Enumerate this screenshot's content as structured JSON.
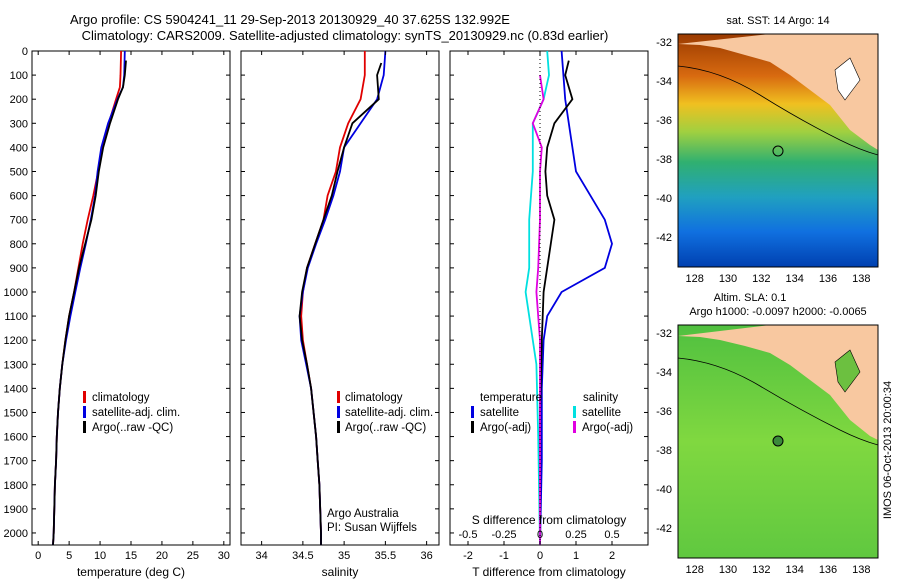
{
  "header": {
    "title1": "Argo profile: CS 5904241_11 29-Sep-2013 20130929_40 37.625S 132.992E",
    "title2": "Climatology: CARS2009. Satellite-adjusted climatology: synTS_20130929.nc (0.83d earlier)"
  },
  "colors": {
    "climatology": "#e00000",
    "satellite": "#0000e0",
    "argo": "#000000",
    "s_satellite": "#00e0e0",
    "s_argo": "#e000e0"
  },
  "chart_data": [
    {
      "type": "line",
      "name": "temperature-panel",
      "xlabel": "temperature (deg C)",
      "ylabel": "",
      "xlim": [
        -1,
        31
      ],
      "ylim": [
        2050,
        0
      ],
      "xticks": [
        0,
        5,
        10,
        15,
        20,
        25,
        30
      ],
      "yticks": [
        0,
        100,
        200,
        300,
        400,
        500,
        600,
        700,
        800,
        900,
        1000,
        1100,
        1200,
        1300,
        1400,
        1500,
        1600,
        1700,
        1800,
        1900,
        2000
      ],
      "legend": [
        "climatology",
        "satellite-adj. clim.",
        "Argo(..raw -QC)"
      ],
      "series": [
        {
          "name": "climatology",
          "color": "#e00000",
          "points": [
            [
              13.4,
              0
            ],
            [
              13.3,
              100
            ],
            [
              13.2,
              150
            ],
            [
              12.6,
              200
            ],
            [
              11.4,
              300
            ],
            [
              10.4,
              400
            ],
            [
              9.7,
              500
            ],
            [
              8.9,
              600
            ],
            [
              8.0,
              700
            ],
            [
              7.2,
              800
            ],
            [
              6.5,
              900
            ],
            [
              5.8,
              1000
            ],
            [
              5.0,
              1100
            ],
            [
              4.4,
              1200
            ],
            [
              3.9,
              1300
            ],
            [
              3.5,
              1400
            ],
            [
              3.2,
              1500
            ],
            [
              3.0,
              1600
            ],
            [
              2.9,
              1700
            ],
            [
              2.7,
              1800
            ],
            [
              2.6,
              1900
            ],
            [
              2.5,
              2000
            ],
            [
              2.4,
              2050
            ]
          ]
        },
        {
          "name": "satellite-adj. clim.",
          "color": "#0000e0",
          "points": [
            [
              14.0,
              0
            ],
            [
              13.9,
              100
            ],
            [
              13.7,
              150
            ],
            [
              12.8,
              200
            ],
            [
              11.3,
              300
            ],
            [
              10.2,
              400
            ],
            [
              9.6,
              500
            ],
            [
              9.2,
              600
            ],
            [
              8.5,
              700
            ],
            [
              7.7,
              800
            ],
            [
              6.8,
              900
            ],
            [
              6.0,
              1000
            ],
            [
              5.2,
              1100
            ],
            [
              4.5,
              1200
            ],
            [
              3.9,
              1300
            ],
            [
              3.5,
              1400
            ],
            [
              3.2,
              1500
            ],
            [
              3.0,
              1600
            ],
            [
              2.9,
              1700
            ],
            [
              2.7,
              1800
            ],
            [
              2.6,
              1900
            ],
            [
              2.5,
              2000
            ],
            [
              2.4,
              2050
            ]
          ]
        },
        {
          "name": "Argo(..raw -QC)",
          "color": "#000000",
          "points": [
            [
              14.2,
              40
            ],
            [
              14.0,
              100
            ],
            [
              13.7,
              150
            ],
            [
              12.9,
              200
            ],
            [
              11.6,
              300
            ],
            [
              10.5,
              400
            ],
            [
              9.8,
              500
            ],
            [
              9.3,
              600
            ],
            [
              8.6,
              700
            ],
            [
              7.6,
              800
            ],
            [
              6.6,
              900
            ],
            [
              5.8,
              1000
            ],
            [
              5.0,
              1100
            ],
            [
              4.4,
              1200
            ],
            [
              3.9,
              1300
            ],
            [
              3.5,
              1400
            ],
            [
              3.2,
              1500
            ],
            [
              3.0,
              1600
            ],
            [
              2.9,
              1700
            ],
            [
              2.7,
              1800
            ],
            [
              2.6,
              1900
            ],
            [
              2.5,
              2000
            ],
            [
              2.4,
              2050
            ]
          ]
        }
      ]
    },
    {
      "type": "line",
      "name": "salinity-panel",
      "xlabel": "salinity",
      "ylabel": "",
      "xlim": [
        33.75,
        36.15
      ],
      "ylim": [
        2050,
        0
      ],
      "xticks": [
        34,
        34.5,
        35,
        35.5,
        36
      ],
      "legend": [
        "climatology",
        "satellite-adj. clim.",
        "Argo(..raw -QC)"
      ],
      "series": [
        {
          "name": "climatology",
          "color": "#e00000",
          "points": [
            [
              35.25,
              0
            ],
            [
              35.25,
              100
            ],
            [
              35.2,
              200
            ],
            [
              35.05,
              300
            ],
            [
              34.95,
              400
            ],
            [
              34.9,
              500
            ],
            [
              34.8,
              600
            ],
            [
              34.75,
              700
            ],
            [
              34.65,
              800
            ],
            [
              34.55,
              900
            ],
            [
              34.5,
              1000
            ],
            [
              34.48,
              1100
            ],
            [
              34.5,
              1200
            ],
            [
              34.55,
              1300
            ],
            [
              34.6,
              1400
            ],
            [
              34.63,
              1500
            ],
            [
              34.66,
              1600
            ],
            [
              34.68,
              1700
            ],
            [
              34.7,
              1800
            ],
            [
              34.71,
              1900
            ],
            [
              34.72,
              2000
            ],
            [
              34.72,
              2050
            ]
          ]
        },
        {
          "name": "satellite-adj. clim.",
          "color": "#0000e0",
          "points": [
            [
              35.5,
              0
            ],
            [
              35.48,
              100
            ],
            [
              35.4,
              200
            ],
            [
              35.2,
              300
            ],
            [
              35.0,
              400
            ],
            [
              34.95,
              500
            ],
            [
              34.87,
              600
            ],
            [
              34.77,
              700
            ],
            [
              34.66,
              800
            ],
            [
              34.56,
              900
            ],
            [
              34.5,
              1000
            ],
            [
              34.46,
              1100
            ],
            [
              34.48,
              1200
            ],
            [
              34.54,
              1300
            ],
            [
              34.6,
              1400
            ],
            [
              34.63,
              1500
            ],
            [
              34.66,
              1600
            ],
            [
              34.68,
              1700
            ],
            [
              34.7,
              1800
            ],
            [
              34.71,
              1900
            ],
            [
              34.72,
              2000
            ],
            [
              34.72,
              2050
            ]
          ]
        },
        {
          "name": "Argo(..raw -QC)",
          "color": "#000000",
          "points": [
            [
              35.45,
              50
            ],
            [
              35.4,
              100
            ],
            [
              35.42,
              200
            ],
            [
              35.1,
              300
            ],
            [
              35.0,
              400
            ],
            [
              34.92,
              500
            ],
            [
              34.85,
              600
            ],
            [
              34.75,
              700
            ],
            [
              34.65,
              800
            ],
            [
              34.55,
              900
            ],
            [
              34.49,
              1000
            ],
            [
              34.46,
              1100
            ],
            [
              34.49,
              1200
            ],
            [
              34.55,
              1300
            ],
            [
              34.6,
              1400
            ],
            [
              34.63,
              1500
            ],
            [
              34.66,
              1600
            ],
            [
              34.68,
              1700
            ],
            [
              34.7,
              1800
            ],
            [
              34.71,
              1900
            ],
            [
              34.72,
              2000
            ],
            [
              34.72,
              2050
            ]
          ]
        }
      ],
      "annotation1": "Argo Australia",
      "annotation2": "PI: Susan Wijffels"
    },
    {
      "type": "line",
      "name": "difference-panel",
      "xlabel_t": "T difference from climatology",
      "xlabel_s": "S difference from climatology",
      "xlim": [
        -2.5,
        3
      ],
      "ylim": [
        2050,
        0
      ],
      "xticks_t": [
        -2,
        -1,
        0,
        1,
        2
      ],
      "xticks_s": [
        "-0.5",
        "-0.25",
        "0",
        "0.25",
        "0.5"
      ],
      "legend_t_title": "temperature",
      "legend_s_title": "salinity",
      "legend": [
        "satellite",
        "Argo(-adj)",
        "satellite",
        "Argo(-adj)"
      ],
      "series": [
        {
          "name": "T satellite",
          "color": "#0000e0",
          "points": [
            [
              0.6,
              0
            ],
            [
              0.65,
              100
            ],
            [
              0.7,
              200
            ],
            [
              0.8,
              300
            ],
            [
              1.0,
              500
            ],
            [
              1.4,
              600
            ],
            [
              1.8,
              700
            ],
            [
              2.0,
              800
            ],
            [
              1.8,
              900
            ],
            [
              0.6,
              1000
            ],
            [
              0.2,
              1100
            ],
            [
              0.1,
              1200
            ],
            [
              0.05,
              1400
            ],
            [
              0.05,
              1700
            ],
            [
              0.0,
              2050
            ]
          ]
        },
        {
          "name": "T Argo(-adj)",
          "color": "#000000",
          "points": [
            [
              0.8,
              40
            ],
            [
              0.7,
              100
            ],
            [
              0.9,
              200
            ],
            [
              0.4,
              300
            ],
            [
              0.2,
              400
            ],
            [
              0.15,
              500
            ],
            [
              0.2,
              600
            ],
            [
              0.4,
              700
            ],
            [
              0.3,
              800
            ],
            [
              0.2,
              900
            ],
            [
              0.1,
              1000
            ],
            [
              0.05,
              1200
            ],
            [
              0.0,
              1500
            ],
            [
              0.0,
              2050
            ]
          ]
        },
        {
          "name": "S satellite",
          "color": "#00e0e0",
          "points": [
            [
              0.2,
              0
            ],
            [
              0.25,
              100
            ],
            [
              0.1,
              200
            ],
            [
              -0.2,
              300
            ],
            [
              -0.2,
              400
            ],
            [
              -0.2,
              500
            ],
            [
              -0.3,
              700
            ],
            [
              -0.3,
              900
            ],
            [
              -0.4,
              1000
            ],
            [
              -0.3,
              1100
            ],
            [
              -0.1,
              1300
            ],
            [
              -0.05,
              1600
            ],
            [
              0.0,
              2050
            ]
          ]
        },
        {
          "name": "S Argo(-adj)",
          "color": "#e000e0",
          "points": [
            [
              0.0,
              100
            ],
            [
              0.1,
              200
            ],
            [
              -0.2,
              300
            ],
            [
              0.05,
              400
            ],
            [
              0.0,
              500
            ],
            [
              0.0,
              700
            ],
            [
              -0.05,
              900
            ],
            [
              -0.1,
              1000
            ],
            [
              0.0,
              1200
            ],
            [
              0.0,
              2050
            ]
          ]
        }
      ]
    }
  ],
  "map_sst": {
    "title": "sat. SST: 14 Argo: 14",
    "xticks": [
      "128",
      "130",
      "132",
      "134",
      "136",
      "138"
    ],
    "yticks": [
      "-32",
      "-34",
      "-36",
      "-38",
      "-40",
      "-42"
    ]
  },
  "map_sla": {
    "title1": "Altim. SLA: 0.1",
    "title2": "Argo h1000: -0.0097 h2000: -0.0065",
    "xticks": [
      "128",
      "130",
      "132",
      "134",
      "136",
      "138"
    ],
    "yticks": [
      "-32",
      "-34",
      "-36",
      "-38",
      "-40",
      "-42"
    ]
  },
  "footer": {
    "stamp": "IMOS 06-Oct-2013 20:00:34"
  }
}
